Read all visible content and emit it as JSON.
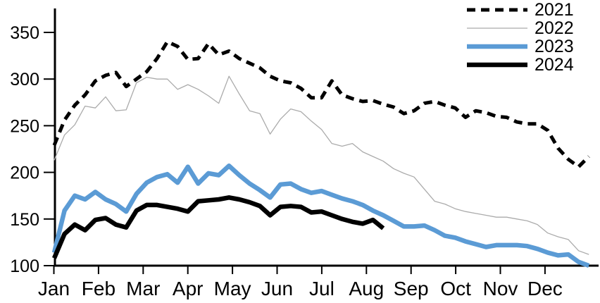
{
  "chart_data": {
    "type": "line",
    "title": "",
    "xlabel": "",
    "ylabel": "",
    "x_axis": {
      "labels": [
        "Jan",
        "Feb",
        "Mar",
        "Apr",
        "May",
        "Jun",
        "Jul",
        "Aug",
        "Sep",
        "Oct",
        "Nov",
        "Dec"
      ],
      "unit": "weekly points across one year"
    },
    "y_axis": {
      "ticks": [
        100,
        150,
        200,
        250,
        300,
        350
      ],
      "range": [
        100,
        350
      ]
    },
    "grid": false,
    "legend_position": "top-right",
    "series": [
      {
        "name": "2021",
        "color": "#000000",
        "style": "dashed",
        "width": 5,
        "dash": "12 8",
        "values": [
          229,
          256,
          272,
          283,
          298,
          304,
          307,
          292,
          300,
          308,
          322,
          340,
          335,
          321,
          322,
          338,
          326,
          330,
          322,
          317,
          312,
          303,
          298,
          296,
          290,
          280,
          280,
          298,
          283,
          279,
          276,
          277,
          273,
          270,
          263,
          266,
          274,
          276,
          272,
          269,
          259,
          266,
          264,
          260,
          259,
          254,
          252,
          252,
          245,
          226,
          214,
          206,
          217
        ]
      },
      {
        "name": "2022",
        "color": "#ababab",
        "style": "solid",
        "width": 1.3,
        "dash": "",
        "values": [
          213,
          240,
          251,
          271,
          269,
          281,
          266,
          267,
          296,
          302,
          300,
          300,
          289,
          294,
          289,
          282,
          274,
          303,
          284,
          266,
          263,
          241,
          257,
          268,
          265,
          255,
          246,
          231,
          228,
          231,
          222,
          217,
          212,
          204,
          199,
          195,
          182,
          169,
          166,
          161,
          158,
          156,
          154,
          152,
          152,
          150,
          148,
          144,
          135,
          131,
          128,
          116,
          112
        ]
      },
      {
        "name": "2023",
        "color": "#5b9bd5",
        "style": "solid",
        "width": 6.5,
        "dash": "",
        "values": [
          114,
          159,
          175,
          171,
          179,
          171,
          166,
          158,
          177,
          189,
          195,
          198,
          189,
          206,
          188,
          199,
          197,
          207,
          197,
          188,
          181,
          173,
          187,
          188,
          182,
          178,
          180,
          176,
          172,
          169,
          165,
          159,
          154,
          148,
          142,
          142,
          143,
          138,
          132,
          130,
          126,
          123,
          120,
          122,
          122,
          122,
          121,
          118,
          114,
          111,
          112,
          104,
          100
        ]
      },
      {
        "name": "2024",
        "color": "#000000",
        "style": "solid",
        "width": 6.5,
        "dash": "",
        "values": [
          108,
          134,
          144,
          138,
          149,
          151,
          144,
          141,
          159,
          165,
          165,
          163,
          161,
          158,
          169,
          170,
          171,
          173,
          171,
          168,
          164,
          154,
          163,
          164,
          163,
          157,
          158,
          154,
          150,
          147,
          145,
          149,
          140
        ]
      }
    ]
  }
}
